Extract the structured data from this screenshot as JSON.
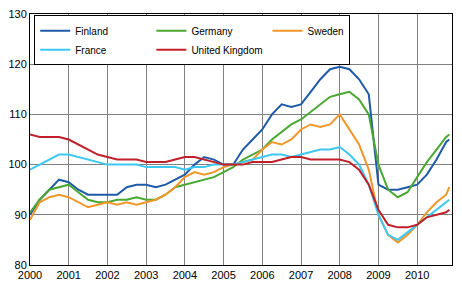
{
  "chart_data": {
    "type": "line",
    "x": [
      2000,
      2000.25,
      2000.5,
      2000.75,
      2001,
      2001.25,
      2001.5,
      2001.75,
      2002,
      2002.25,
      2002.5,
      2002.75,
      2003,
      2003.25,
      2003.5,
      2003.75,
      2004,
      2004.25,
      2004.5,
      2004.75,
      2005,
      2005.25,
      2005.5,
      2005.75,
      2006,
      2006.25,
      2006.5,
      2006.75,
      2007,
      2007.25,
      2007.5,
      2007.75,
      2008,
      2008.25,
      2008.5,
      2008.75,
      2009,
      2009.25,
      2009.5,
      2009.75,
      2010,
      2010.25,
      2010.5,
      2010.75,
      2010.83
    ],
    "series": [
      {
        "name": "Finland",
        "color": "#1f5aa8",
        "values": [
          90,
          93,
          95,
          97,
          96.5,
          95,
          94,
          94,
          94,
          94,
          95.5,
          96,
          96,
          95.5,
          96,
          97,
          98,
          100,
          101.5,
          101,
          100,
          100,
          103,
          105,
          107,
          110,
          112,
          111.5,
          112,
          114.5,
          117,
          119,
          119.5,
          119,
          117,
          114,
          96,
          95,
          95,
          95.5,
          96,
          98,
          101,
          104.5,
          105
        ]
      },
      {
        "name": "Germany",
        "color": "#4aa832",
        "values": [
          90.5,
          93,
          95,
          95.5,
          96,
          94.5,
          93,
          92.5,
          92.5,
          93,
          93,
          93.5,
          93,
          93,
          94,
          95.5,
          96,
          96.5,
          97,
          97.5,
          98.5,
          99.5,
          101,
          102,
          103,
          105,
          106.5,
          108,
          109,
          110.5,
          112,
          113.5,
          114,
          114.5,
          113,
          110,
          100,
          95,
          93.5,
          94.5,
          97.5,
          100.5,
          103,
          105.5,
          106
        ]
      },
      {
        "name": "Sweden",
        "color": "#f0962a",
        "values": [
          89,
          92.5,
          93.5,
          94,
          93.5,
          92.5,
          91.5,
          92,
          92.5,
          92,
          92.5,
          92,
          92.5,
          93,
          94,
          95.5,
          97.5,
          98.5,
          98,
          98.5,
          99.5,
          100,
          100.5,
          101,
          103,
          104.5,
          104,
          105,
          107,
          108,
          107.5,
          108,
          110,
          107,
          104,
          99,
          90,
          86,
          84.5,
          86,
          88,
          90.5,
          92.5,
          94,
          95.5
        ]
      },
      {
        "name": "France",
        "color": "#3cc8f0",
        "values": [
          99,
          100,
          101,
          102,
          102,
          101.5,
          101,
          100.5,
          100,
          100,
          100,
          100,
          99.5,
          99.5,
          99.5,
          99.5,
          99,
          99.5,
          99.5,
          100,
          100,
          100,
          100.5,
          101,
          101.5,
          102,
          102,
          101.5,
          102,
          102.5,
          103,
          103,
          103.5,
          102,
          100,
          96,
          90,
          86,
          85,
          86.5,
          88,
          89.5,
          91,
          92.5,
          93
        ]
      },
      {
        "name": "United Kingdom",
        "color": "#c0202a",
        "values": [
          106,
          105.5,
          105.5,
          105.5,
          105,
          104,
          103,
          102,
          101.5,
          101,
          101,
          101,
          100.5,
          100.5,
          100.5,
          101,
          101.5,
          101.5,
          101,
          100.5,
          100,
          100,
          100,
          100.5,
          100.5,
          100.5,
          101,
          101.5,
          101.5,
          101,
          101,
          101,
          101,
          100.5,
          99,
          96,
          91,
          88,
          87.5,
          87.5,
          88,
          89.5,
          90,
          90.5,
          91
        ]
      }
    ],
    "xlim": [
      2000,
      2010.9
    ],
    "xticks": [
      2000,
      2001,
      2002,
      2003,
      2004,
      2005,
      2006,
      2007,
      2008,
      2009,
      2010
    ],
    "ylim": [
      80,
      130
    ],
    "yticks": [
      80,
      90,
      100,
      110,
      120,
      130
    ],
    "grid": true,
    "legend": "top"
  }
}
